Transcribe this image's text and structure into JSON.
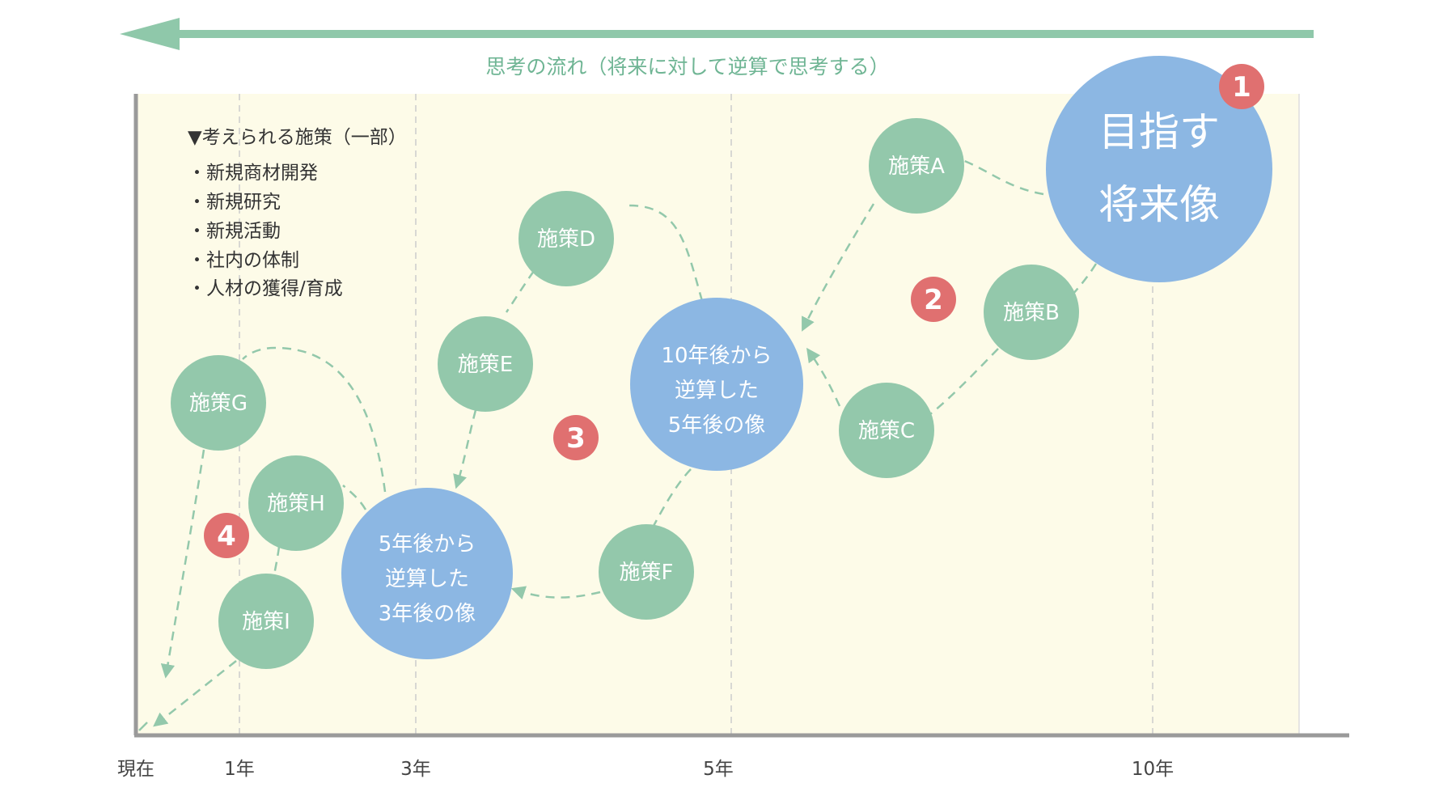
{
  "flow_caption": "思考の流れ（将来に対して逆算で思考する）",
  "axis_labels": [
    "現在",
    "1年",
    "3年",
    "5年",
    "10年"
  ],
  "legend": {
    "title": "▼考えられる施策（一部）",
    "items": [
      "・新規商材開発",
      "・新規研究",
      "・新規活動",
      "・社内の体制",
      "・人材の獲得/育成"
    ]
  },
  "goal": {
    "line1": "目指す",
    "line2": "将来像"
  },
  "image_10y": {
    "line1": "10年後から",
    "line2": "逆算した",
    "line3": "5年後の像"
  },
  "image_5y": {
    "line1": "5年後から",
    "line2": "逆算した",
    "line3": "3年後の像"
  },
  "measures": {
    "a": "施策A",
    "b": "施策B",
    "c": "施策C",
    "d": "施策D",
    "e": "施策E",
    "f": "施策F",
    "g": "施策G",
    "h": "施策H",
    "i": "施策I"
  },
  "steps": [
    "1",
    "2",
    "3",
    "4"
  ],
  "colors": {
    "arrow": "#8fc8aa",
    "plot_bg": "#fdfbe8",
    "measure": "#93c8ab",
    "image": "#8cb7e3",
    "step": "#e07070",
    "axis": "#999999"
  }
}
